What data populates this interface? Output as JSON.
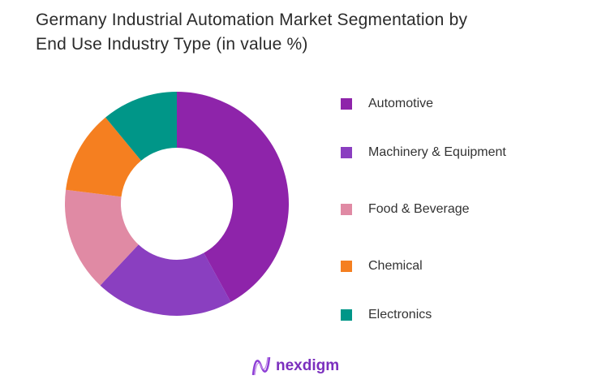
{
  "title_line1": "Germany Industrial Automation Market Segmentation by",
  "title_line2": "End Use Industry Type (in value %)",
  "chart_data": {
    "type": "pie",
    "donut": true,
    "title": "Germany Industrial Automation Market Segmentation by End Use Industry Type (in value %)",
    "categories": [
      "Automotive",
      "Machinery & Equipment",
      "Food & Beverage",
      "Chemical",
      "Electronics"
    ],
    "values": [
      42,
      20,
      15,
      12,
      11
    ],
    "colors": [
      "#8E24AA",
      "#8A3FC0",
      "#E08AA4",
      "#F57F20",
      "#009688"
    ],
    "legend_position": "right"
  },
  "logo": {
    "text": "nexdigm"
  }
}
